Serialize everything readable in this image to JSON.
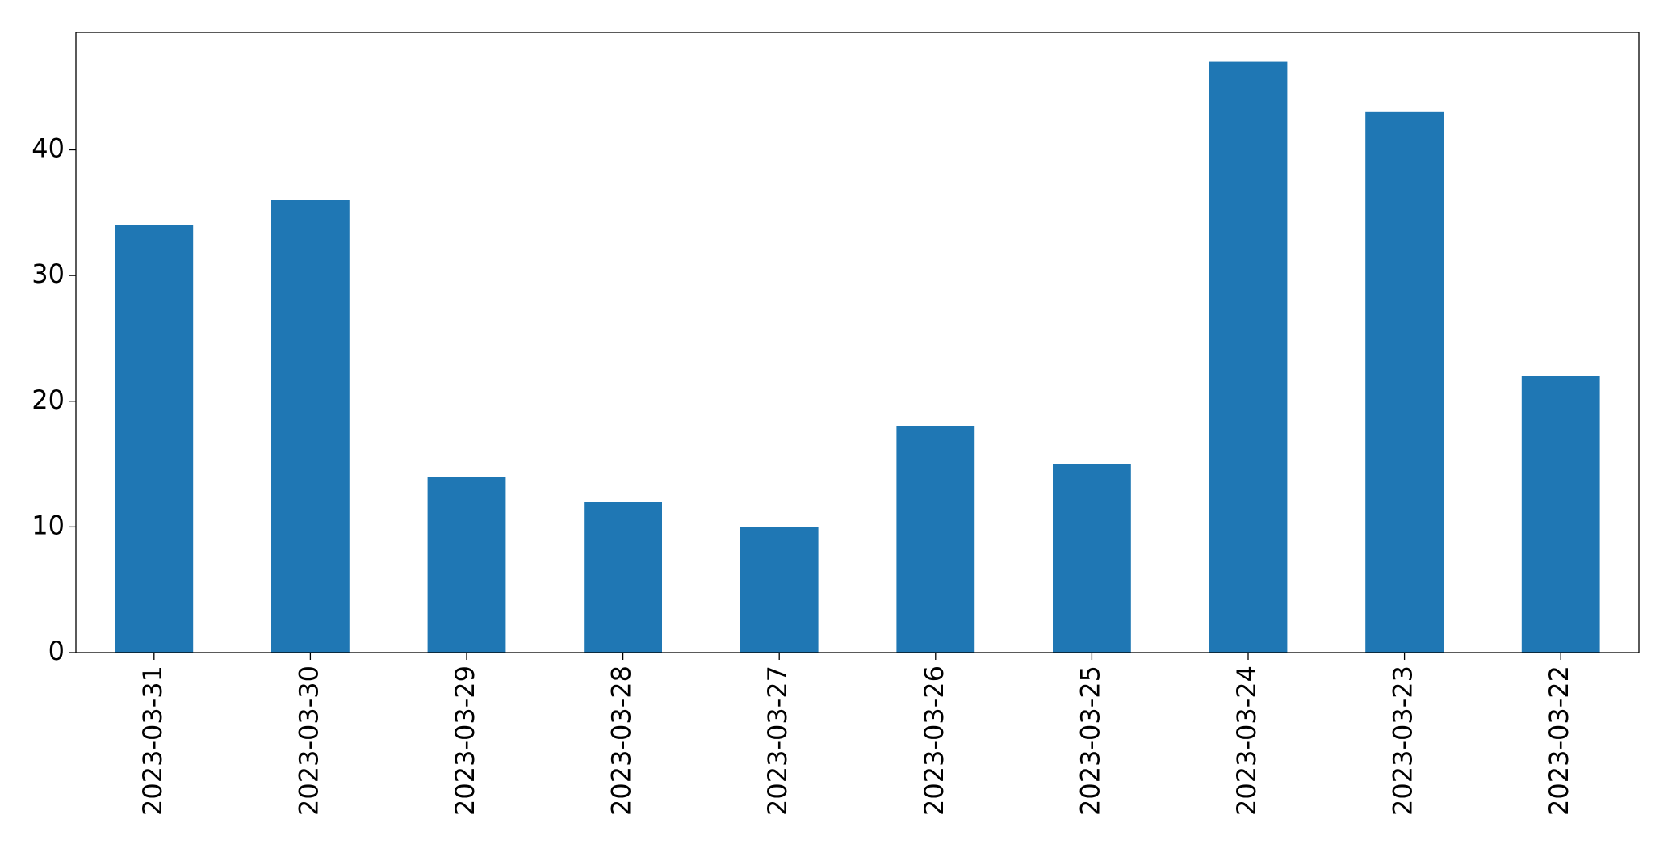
{
  "chart_data": {
    "type": "bar",
    "categories": [
      "2023-03-31",
      "2023-03-30",
      "2023-03-29",
      "2023-03-28",
      "2023-03-27",
      "2023-03-26",
      "2023-03-25",
      "2023-03-24",
      "2023-03-23",
      "2023-03-22"
    ],
    "values": [
      34,
      36,
      14,
      12,
      10,
      18,
      15,
      47,
      43,
      22
    ],
    "color": "#1f77b4",
    "ylim": [
      0,
      49.35
    ],
    "yticks": [
      0,
      10,
      20,
      30,
      40
    ]
  }
}
